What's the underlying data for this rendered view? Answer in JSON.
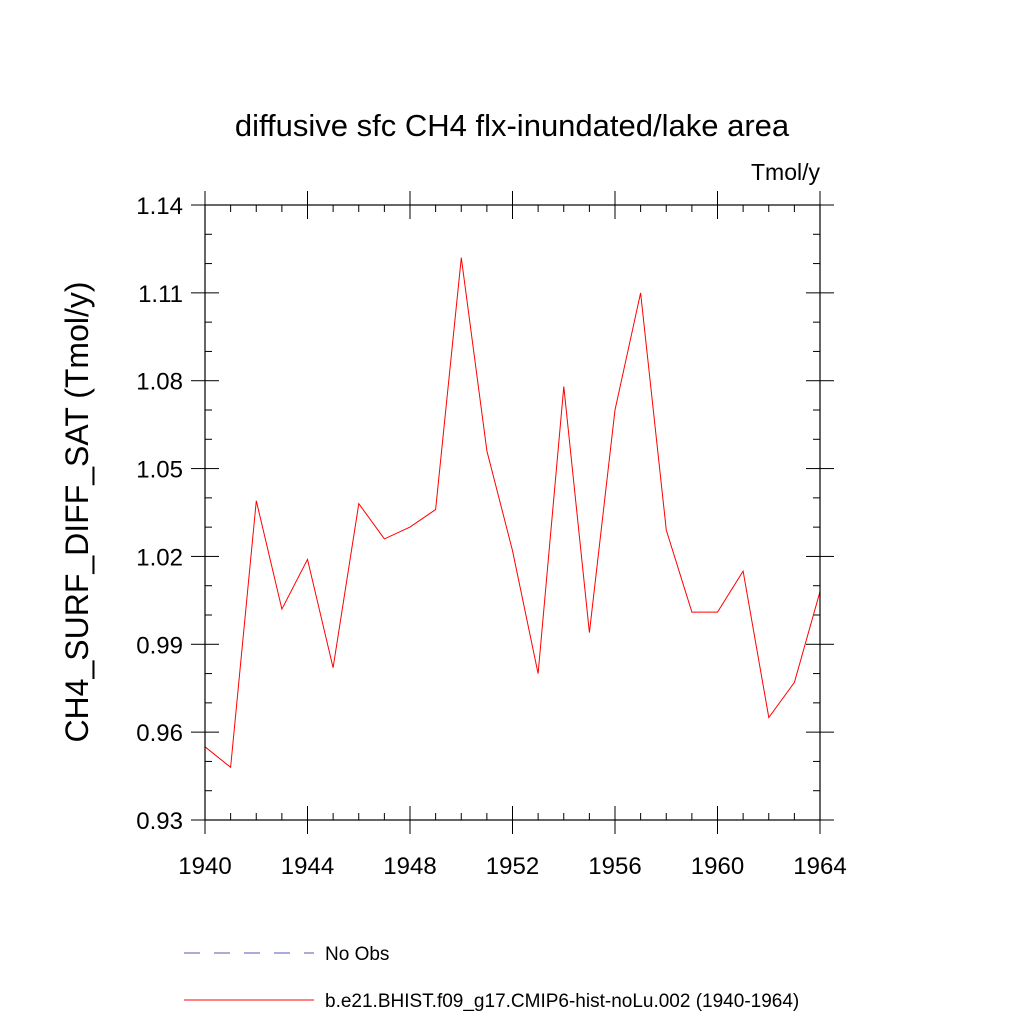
{
  "chart_data": {
    "type": "line",
    "title": "diffusive sfc CH4 flx-inundated/lake area",
    "units": "Tmol/y",
    "ylabel": "CH4_SURF_DIFF_SAT  (Tmol/y)",
    "xlabel": "",
    "xlim": [
      1940,
      1964
    ],
    "ylim": [
      0.93,
      1.14
    ],
    "x_ticks": [
      "1940",
      "1944",
      "1948",
      "1952",
      "1956",
      "1960",
      "1964"
    ],
    "y_ticks": [
      "0.93",
      "0.96",
      "0.99",
      "1.02",
      "1.05",
      "1.08",
      "1.11",
      "1.14"
    ],
    "grid": false,
    "legend_position": "bottom",
    "series": [
      {
        "name": "No Obs",
        "color": "#5a5ab4",
        "style": "dashed",
        "x": [],
        "values": []
      },
      {
        "name": "b.e21.BHIST.f09_g17.CMIP6-hist-noLu.002 (1940-1964)",
        "color": "#ff0000",
        "style": "solid",
        "x": [
          1940,
          1941,
          1942,
          1943,
          1944,
          1945,
          1946,
          1947,
          1948,
          1949,
          1950,
          1951,
          1952,
          1953,
          1954,
          1955,
          1956,
          1957,
          1958,
          1959,
          1960,
          1961,
          1962,
          1963,
          1964
        ],
        "values": [
          0.955,
          0.948,
          1.039,
          1.002,
          1.019,
          0.982,
          1.038,
          1.026,
          1.03,
          1.036,
          1.122,
          1.056,
          1.022,
          0.98,
          1.078,
          0.994,
          1.07,
          1.11,
          1.029,
          1.001,
          1.001,
          1.015,
          0.965,
          0.977,
          1.008
        ]
      }
    ]
  }
}
